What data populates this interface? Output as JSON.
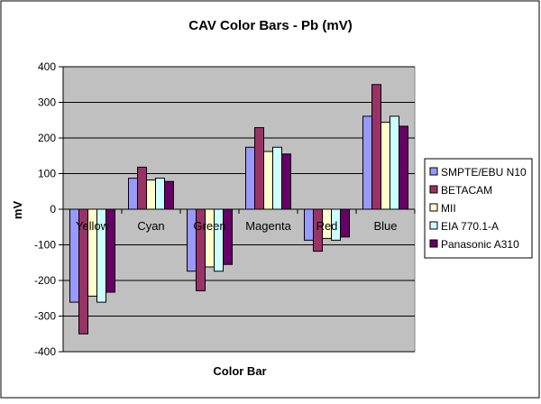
{
  "chart_data": {
    "type": "bar",
    "title": "CAV Color Bars - Pb (mV)",
    "xlabel": "Color Bar",
    "ylabel": "mV",
    "ylim": [
      -400,
      400
    ],
    "ytick_step": 100,
    "grid": true,
    "plot_background": "#c0c0c0",
    "legend_position": "right",
    "categories": [
      "Yellow",
      "Cyan",
      "Green",
      "Magenta",
      "Red",
      "Blue"
    ],
    "series": [
      {
        "name": "SMPTE/EBU N10",
        "color": "#9999ff",
        "values": [
          -261,
          87,
          -174,
          174,
          -87,
          261
        ]
      },
      {
        "name": "BETACAM",
        "color": "#993366",
        "values": [
          -350,
          118,
          -229,
          229,
          -118,
          350
        ]
      },
      {
        "name": "MII",
        "color": "#ffffcc",
        "values": [
          -244,
          82,
          -162,
          162,
          -82,
          244
        ]
      },
      {
        "name": "EIA 770.1-A",
        "color": "#ccffff",
        "values": [
          -261,
          87,
          -174,
          174,
          -87,
          261
        ]
      },
      {
        "name": "Panasonic A310",
        "color": "#660066",
        "values": [
          -233,
          78,
          -155,
          155,
          -78,
          233
        ]
      }
    ]
  }
}
